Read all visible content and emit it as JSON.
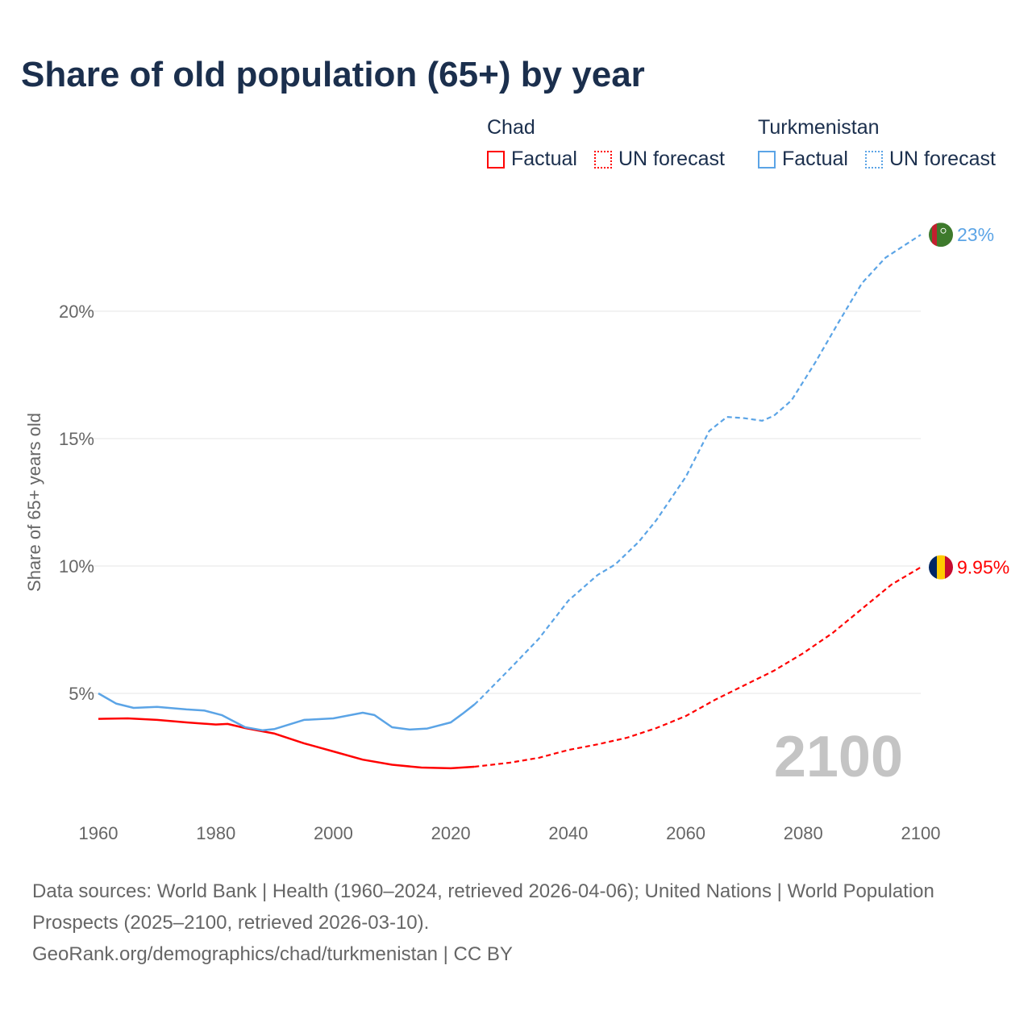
{
  "chart_data": {
    "type": "line",
    "title": "Share of old population (65+) by year",
    "ylabel": "Share of 65+ years old",
    "xlabel": "",
    "xlim": [
      1960,
      2100
    ],
    "ylim": [
      0,
      23
    ],
    "x_ticks": [
      "1960",
      "1980",
      "2000",
      "2020",
      "2040",
      "2060",
      "2080",
      "2100"
    ],
    "x_tick_values": [
      1960,
      1980,
      2000,
      2020,
      2040,
      2060,
      2080,
      2100
    ],
    "y_ticks": [
      "5%",
      "10%",
      "15%",
      "20%"
    ],
    "y_tick_values": [
      5,
      10,
      15,
      20
    ],
    "grid": true,
    "year_watermark": "2100",
    "legend": {
      "placement": "top-right",
      "groups": [
        {
          "name": "Chad",
          "factual": "Factual",
          "forecast": "UN forecast"
        },
        {
          "name": "Turkmenistan",
          "factual": "Factual",
          "forecast": "UN forecast"
        }
      ]
    },
    "series": [
      {
        "name": "Chad",
        "color": "#ff0000",
        "end_label": "9.95%",
        "flag_colors": [
          "#002664",
          "#fecb00",
          "#c60c30"
        ],
        "factual": {
          "x": [
            1960,
            1965,
            1970,
            1975,
            1980,
            1982,
            1985,
            1990,
            1995,
            2000,
            2005,
            2010,
            2015,
            2020,
            2024
          ],
          "y": [
            4.0,
            4.02,
            3.96,
            3.86,
            3.78,
            3.8,
            3.64,
            3.42,
            3.04,
            2.72,
            2.4,
            2.2,
            2.09,
            2.06,
            2.12
          ]
        },
        "forecast": {
          "x": [
            2024,
            2030,
            2035,
            2040,
            2045,
            2050,
            2055,
            2060,
            2065,
            2070,
            2075,
            2080,
            2085,
            2090,
            2095,
            2100
          ],
          "y": [
            2.12,
            2.28,
            2.47,
            2.78,
            3.0,
            3.26,
            3.64,
            4.11,
            4.75,
            5.32,
            5.89,
            6.58,
            7.37,
            8.32,
            9.27,
            9.95
          ]
        }
      },
      {
        "name": "Turkmenistan",
        "color": "#5ba4e6",
        "end_label": "23%",
        "flag_colors": [
          "#3e7a2c",
          "#c3202f"
        ],
        "factual": {
          "x": [
            1960,
            1963,
            1966,
            1970,
            1975,
            1978,
            1981,
            1985,
            1988,
            1990,
            1995,
            2000,
            2005,
            2007,
            2010,
            2013,
            2016,
            2020,
            2022,
            2024
          ],
          "y": [
            5.0,
            4.6,
            4.43,
            4.47,
            4.37,
            4.33,
            4.15,
            3.67,
            3.55,
            3.6,
            3.96,
            4.02,
            4.24,
            4.15,
            3.67,
            3.58,
            3.62,
            3.86,
            4.2,
            4.56
          ]
        },
        "forecast": {
          "x": [
            2024,
            2025,
            2030,
            2035,
            2040,
            2045,
            2048,
            2052,
            2055,
            2060,
            2064,
            2067,
            2070,
            2073,
            2075,
            2078,
            2082,
            2086,
            2090,
            2094,
            2097,
            2100
          ],
          "y": [
            4.56,
            4.78,
            5.95,
            7.15,
            8.64,
            9.65,
            10.06,
            10.95,
            11.8,
            13.5,
            15.3,
            15.85,
            15.8,
            15.7,
            15.9,
            16.5,
            17.97,
            19.56,
            21.1,
            22.1,
            22.55,
            23.0
          ]
        }
      }
    ]
  },
  "footer": {
    "sources": "Data sources: World Bank | Health (1960–2024, retrieved 2026-04-06); United Nations | World Population Prospects (2025–2100, retrieved 2026-03-10).",
    "attribution": "GeoRank.org/demographics/chad/turkmenistan | CC BY"
  }
}
